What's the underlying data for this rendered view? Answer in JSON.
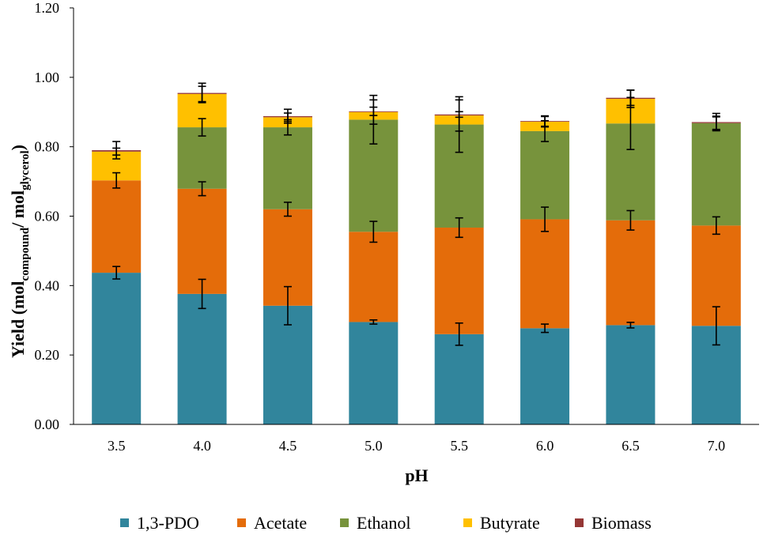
{
  "chart_data": {
    "type": "bar",
    "stacked": true,
    "categories": [
      "3.5",
      "4.0",
      "4.5",
      "5.0",
      "5.5",
      "6.0",
      "6.5",
      "7.0"
    ],
    "xlabel": "pH",
    "ylabel": {
      "prefix": "Yield (mol",
      "sub1": "compound",
      "mid": "/ mol",
      "sub2": "glycerol",
      "suffix": ")"
    },
    "ylim": [
      0,
      1.2
    ],
    "yticks": [
      "0.00",
      "0.20",
      "0.40",
      "0.60",
      "0.80",
      "1.00",
      "1.20"
    ],
    "grid": false,
    "legend_position": "bottom",
    "series": [
      {
        "name": "1,3-PDO",
        "color": "#31859C",
        "values": [
          0.437,
          0.376,
          0.342,
          0.295,
          0.26,
          0.277,
          0.286,
          0.284
        ],
        "errors": [
          0.018,
          0.042,
          0.055,
          0.006,
          0.032,
          0.012,
          0.008,
          0.055
        ]
      },
      {
        "name": "Acetate",
        "color": "#E46C0A",
        "values": [
          0.266,
          0.303,
          0.278,
          0.26,
          0.307,
          0.314,
          0.302,
          0.289
        ],
        "errors": [
          0.022,
          0.02,
          0.02,
          0.03,
          0.028,
          0.035,
          0.028,
          0.025
        ]
      },
      {
        "name": "Ethanol",
        "color": "#77933C",
        "values": [
          0.0,
          0.177,
          0.236,
          0.323,
          0.297,
          0.254,
          0.279,
          0.295
        ],
        "errors": [
          0.0,
          0.025,
          0.022,
          0.07,
          0.08,
          0.03,
          0.075,
          0.02
        ]
      },
      {
        "name": "Butyrate",
        "color": "#FFC000",
        "values": [
          0.083,
          0.096,
          0.029,
          0.022,
          0.026,
          0.027,
          0.071,
          0.0
        ],
        "errors": [
          0.01,
          0.022,
          0.012,
          0.035,
          0.045,
          0.015,
          0.025,
          0.018
        ]
      },
      {
        "name": "Biomass",
        "color": "#953735",
        "values": [
          0.004,
          0.003,
          0.003,
          0.002,
          0.003,
          0.002,
          0.003,
          0.003
        ],
        "errors": [
          0.025,
          0.028,
          0.02,
          0.012,
          0.008,
          0.015,
          0.022,
          0.025
        ]
      }
    ]
  }
}
